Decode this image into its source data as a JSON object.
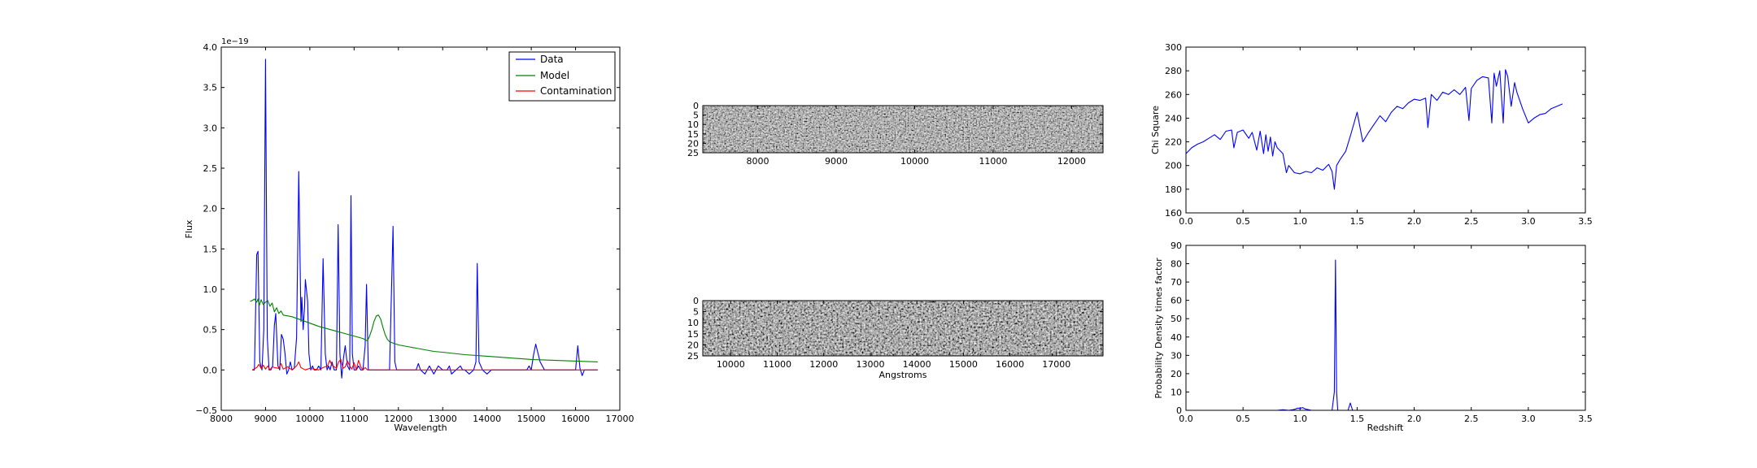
{
  "chart_data": [
    {
      "type": "line",
      "xlabel": "Wavelength",
      "ylabel": "Flux",
      "offset_text": "1e−19",
      "xlim": [
        8000,
        17000
      ],
      "ylim": [
        -0.5,
        4.0
      ],
      "xticks": [
        "8000",
        "9000",
        "10000",
        "11000",
        "12000",
        "13000",
        "14000",
        "15000",
        "16000",
        "17000"
      ],
      "yticks": [
        "−0.5",
        "0.0",
        "0.5",
        "1.0",
        "1.5",
        "2.0",
        "2.5",
        "3.0",
        "3.5",
        "4.0"
      ],
      "legend_position": "top-right",
      "colors": {
        "data": "#0000ff",
        "model": "#008000",
        "contamination": "#ff0000"
      },
      "series": [
        {
          "name": "Data",
          "color": "#0000ff",
          "x": [
            8700,
            8750,
            8800,
            8830,
            8870,
            8920,
            8960,
            9000,
            9040,
            9080,
            9120,
            9160,
            9200,
            9230,
            9280,
            9320,
            9360,
            9400,
            9440,
            9480,
            9520,
            9560,
            9600,
            9650,
            9700,
            9750,
            9800,
            9820,
            9850,
            9880,
            9900,
            9950,
            9980,
            10020,
            10060,
            10100,
            10150,
            10200,
            10250,
            10300,
            10350,
            10390,
            10420,
            10460,
            10500,
            10550,
            10600,
            10640,
            10680,
            10720,
            10760,
            10800,
            10850,
            10900,
            10930,
            10960,
            11000,
            11050,
            11100,
            11150,
            11200,
            11250,
            11280,
            11320,
            11400,
            11500,
            11600,
            11700,
            11800,
            11880,
            11920,
            11960,
            12000,
            12100,
            12200,
            12300,
            12400,
            12450,
            12500,
            12600,
            12700,
            12800,
            12850,
            12900,
            13000,
            13100,
            13150,
            13200,
            13300,
            13400,
            13450,
            13500,
            13600,
            13700,
            13750,
            13780,
            13820,
            13900,
            14000,
            14100,
            14200,
            14300,
            14400,
            14500,
            14600,
            14650,
            14700,
            14800,
            14900,
            14950,
            15000,
            15050,
            15100,
            15200,
            15300,
            15400,
            15450,
            15500,
            15600,
            15700,
            15800,
            15900,
            16000,
            16050,
            16100,
            16150,
            16200,
            16300,
            16400,
            16500
          ],
          "y": [
            0.0,
            0.0,
            1.43,
            1.47,
            0.1,
            0.0,
            0.5,
            3.85,
            0.4,
            0.0,
            0.0,
            0.05,
            0.55,
            0.7,
            0.05,
            0.0,
            0.44,
            0.38,
            0.2,
            -0.05,
            0.0,
            0.1,
            0.0,
            0.02,
            0.4,
            2.46,
            0.6,
            0.9,
            0.5,
            0.78,
            1.12,
            0.85,
            0.2,
            0.0,
            0.05,
            0.0,
            0.0,
            0.05,
            0.0,
            1.38,
            0.2,
            0.0,
            0.05,
            0.0,
            0.1,
            0.0,
            0.0,
            1.8,
            0.2,
            -0.1,
            0.15,
            0.3,
            0.05,
            0.0,
            2.16,
            0.2,
            0.0,
            0.0,
            0.05,
            0.0,
            0.0,
            0.3,
            1.06,
            0.0,
            0.0,
            0.0,
            0.0,
            0.0,
            0.0,
            1.78,
            0.1,
            0.0,
            0.0,
            0.0,
            0.0,
            0.0,
            0.0,
            0.08,
            0.0,
            -0.05,
            0.05,
            -0.05,
            0.0,
            0.05,
            0.0,
            0.0,
            0.05,
            -0.05,
            0.0,
            0.05,
            0.0,
            0.0,
            -0.05,
            0.0,
            0.1,
            1.32,
            0.1,
            0.0,
            -0.05,
            0.0,
            0.0,
            0.0,
            0.0,
            0.0,
            0.0,
            0.0,
            0.0,
            0.0,
            0.0,
            0.05,
            0.0,
            0.18,
            0.32,
            0.1,
            0.0,
            0.0,
            0.0,
            0.0,
            0.0,
            0.0,
            0.0,
            0.0,
            0.0,
            0.3,
            0.02,
            -0.07,
            0.0,
            0.0,
            0.0,
            0.0
          ]
        },
        {
          "name": "Model",
          "color": "#008000",
          "x": [
            8650,
            8700,
            8750,
            8800,
            8830,
            8860,
            8900,
            8950,
            9000,
            9050,
            9100,
            9150,
            9200,
            9250,
            9300,
            9350,
            9400,
            9500,
            9600,
            9700,
            9800,
            9900,
            10000,
            10200,
            10400,
            10600,
            10800,
            11000,
            11200,
            11300,
            11350,
            11400,
            11450,
            11500,
            11550,
            11600,
            11650,
            11700,
            11750,
            11800,
            11900,
            12000,
            12200,
            12400,
            12600,
            12800,
            13000,
            13500,
            14000,
            14500,
            15000,
            15500,
            16000,
            16500
          ],
          "y": [
            0.85,
            0.86,
            0.88,
            0.84,
            0.88,
            0.8,
            0.87,
            0.81,
            0.84,
            0.86,
            0.79,
            0.83,
            0.72,
            0.77,
            0.7,
            0.73,
            0.68,
            0.67,
            0.66,
            0.64,
            0.62,
            0.6,
            0.58,
            0.54,
            0.51,
            0.48,
            0.45,
            0.42,
            0.39,
            0.36,
            0.42,
            0.5,
            0.6,
            0.67,
            0.68,
            0.63,
            0.53,
            0.44,
            0.38,
            0.35,
            0.33,
            0.31,
            0.29,
            0.27,
            0.25,
            0.23,
            0.22,
            0.19,
            0.17,
            0.15,
            0.13,
            0.12,
            0.11,
            0.1
          ]
        },
        {
          "name": "Contamination",
          "color": "#ff0000",
          "x": [
            8700,
            8800,
            8850,
            8900,
            8950,
            9000,
            9050,
            9100,
            9150,
            9200,
            9300,
            9350,
            9400,
            9500,
            9600,
            9700,
            9750,
            9800,
            9900,
            10000,
            10100,
            10200,
            10300,
            10400,
            10450,
            10500,
            10600,
            10650,
            10700,
            10750,
            10800,
            10850,
            10900,
            10950,
            11000,
            11050,
            11100,
            11150,
            11200,
            11250,
            11300,
            11400,
            12000,
            13000,
            14000,
            15000,
            16000,
            16500
          ],
          "y": [
            0.0,
            0.03,
            0.07,
            0.02,
            0.06,
            0.01,
            0.05,
            0.0,
            0.04,
            0.03,
            0.02,
            0.08,
            0.01,
            0.04,
            0.0,
            0.05,
            0.1,
            0.03,
            0.0,
            0.02,
            0.01,
            0.0,
            0.03,
            0.05,
            0.12,
            0.06,
            0.02,
            0.1,
            0.13,
            0.02,
            0.04,
            0.11,
            0.05,
            0.01,
            0.09,
            0.0,
            0.12,
            0.04,
            0.0,
            0.03,
            0.0,
            0.0,
            0.0,
            0.0,
            0.0,
            0.0,
            0.0,
            0.0
          ]
        }
      ]
    },
    {
      "type": "heatmap",
      "xlim": [
        7300,
        12400
      ],
      "xticks": [
        "8000",
        "9000",
        "10000",
        "11000",
        "12000"
      ],
      "yticks": [
        "0",
        "5",
        "10",
        "15",
        "20",
        "25"
      ],
      "ylim": [
        0,
        25
      ]
    },
    {
      "type": "heatmap",
      "xlabel": "Angstroms",
      "xlim": [
        9400,
        18000
      ],
      "xticks": [
        "10000",
        "11000",
        "12000",
        "13000",
        "14000",
        "15000",
        "16000",
        "17000"
      ],
      "yticks": [
        "0",
        "5",
        "10",
        "15",
        "20",
        "25"
      ],
      "ylim": [
        0,
        25
      ]
    },
    {
      "type": "line",
      "ylabel": "Chi Square",
      "xlim": [
        0.0,
        3.5
      ],
      "ylim": [
        160,
        300
      ],
      "xticks": [
        "0.0",
        "0.5",
        "1.0",
        "1.5",
        "2.0",
        "2.5",
        "3.0",
        "3.5"
      ],
      "yticks": [
        "160",
        "180",
        "200",
        "220",
        "240",
        "260",
        "280",
        "300"
      ],
      "series": [
        {
          "color": "#0000ff",
          "x": [
            0.0,
            0.05,
            0.1,
            0.15,
            0.2,
            0.25,
            0.3,
            0.35,
            0.4,
            0.42,
            0.45,
            0.5,
            0.55,
            0.58,
            0.62,
            0.65,
            0.68,
            0.7,
            0.72,
            0.74,
            0.76,
            0.78,
            0.8,
            0.85,
            0.88,
            0.9,
            0.95,
            1.0,
            1.05,
            1.1,
            1.15,
            1.2,
            1.25,
            1.28,
            1.3,
            1.32,
            1.35,
            1.4,
            1.45,
            1.5,
            1.55,
            1.6,
            1.65,
            1.7,
            1.75,
            1.8,
            1.85,
            1.9,
            1.95,
            2.0,
            2.05,
            2.1,
            2.12,
            2.15,
            2.2,
            2.25,
            2.3,
            2.35,
            2.4,
            2.45,
            2.48,
            2.5,
            2.55,
            2.6,
            2.65,
            2.68,
            2.7,
            2.72,
            2.75,
            2.78,
            2.8,
            2.82,
            2.85,
            2.88,
            2.9,
            2.95,
            3.0,
            3.05,
            3.1,
            3.15,
            3.2,
            3.25,
            3.3
          ],
          "y": [
            210,
            215,
            218,
            220,
            223,
            226,
            222,
            229,
            230,
            215,
            228,
            230,
            223,
            228,
            213,
            229,
            210,
            226,
            212,
            224,
            208,
            220,
            215,
            210,
            194,
            200,
            194,
            193,
            195,
            194,
            198,
            196,
            201,
            195,
            180,
            200,
            205,
            212,
            228,
            245,
            220,
            228,
            235,
            242,
            237,
            245,
            250,
            248,
            253,
            256,
            255,
            257,
            232,
            260,
            255,
            262,
            260,
            264,
            260,
            266,
            238,
            265,
            272,
            275,
            274,
            236,
            278,
            267,
            280,
            236,
            281,
            275,
            250,
            270,
            262,
            248,
            236,
            240,
            243,
            244,
            248,
            250,
            252
          ]
        }
      ]
    },
    {
      "type": "line",
      "xlabel": "Redshift",
      "ylabel": "Probability Density times factor",
      "xlim": [
        0.0,
        3.5
      ],
      "ylim": [
        0,
        90
      ],
      "xticks": [
        "0.0",
        "0.5",
        "1.0",
        "1.5",
        "2.0",
        "2.5",
        "3.0",
        "3.5"
      ],
      "yticks": [
        "0",
        "10",
        "20",
        "30",
        "40",
        "50",
        "60",
        "70",
        "80",
        "90"
      ],
      "series": [
        {
          "color": "#0000ff",
          "x": [
            0.0,
            0.5,
            0.8,
            0.85,
            0.9,
            0.95,
            0.98,
            1.0,
            1.02,
            1.05,
            1.1,
            1.2,
            1.28,
            1.3,
            1.31,
            1.32,
            1.33,
            1.35,
            1.4,
            1.42,
            1.44,
            1.46,
            1.5,
            2.0,
            2.5,
            3.0,
            3.3
          ],
          "y": [
            0,
            0,
            0,
            0.3,
            0,
            0.5,
            1.2,
            1.0,
            1.5,
            0.6,
            0,
            0,
            0,
            10,
            82,
            10,
            0,
            0,
            0,
            0,
            4,
            0,
            0,
            0,
            0,
            0,
            0
          ]
        }
      ]
    }
  ],
  "legend": {
    "entries": [
      "Data",
      "Model",
      "Contamination"
    ]
  }
}
